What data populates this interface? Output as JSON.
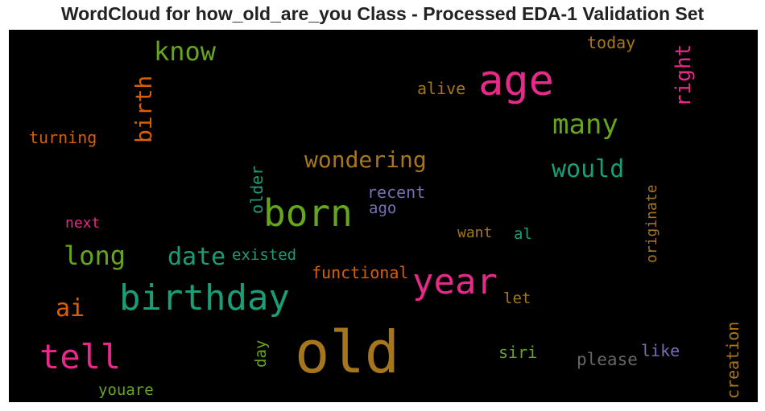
{
  "chart_data": {
    "type": "wordcloud",
    "title": "WordCloud for how_old_are_you Class - Processed EDA-1 Validation Set",
    "background": "#000000",
    "colormap": "Dark2",
    "words": [
      {
        "text": "old",
        "color": "#a6761d",
        "vertical": false
      },
      {
        "text": "age",
        "color": "#e7298a",
        "vertical": false
      },
      {
        "text": "born",
        "color": "#66a61e",
        "vertical": false
      },
      {
        "text": "birthday",
        "color": "#1b9e77",
        "vertical": false
      },
      {
        "text": "year",
        "color": "#e7298a",
        "vertical": false
      },
      {
        "text": "tell",
        "color": "#e7298a",
        "vertical": false
      },
      {
        "text": "many",
        "color": "#66a61e",
        "vertical": false
      },
      {
        "text": "would",
        "color": "#1b9e77",
        "vertical": false
      },
      {
        "text": "know",
        "color": "#66a61e",
        "vertical": false
      },
      {
        "text": "long",
        "color": "#66a61e",
        "vertical": false
      },
      {
        "text": "date",
        "color": "#1b9e77",
        "vertical": false
      },
      {
        "text": "ai",
        "color": "#d95f02",
        "vertical": false
      },
      {
        "text": "wondering",
        "color": "#a6761d",
        "vertical": false
      },
      {
        "text": "birth",
        "color": "#d95f02",
        "vertical": true
      },
      {
        "text": "right",
        "color": "#e7298a",
        "vertical": true
      },
      {
        "text": "today",
        "color": "#a6761d",
        "vertical": false
      },
      {
        "text": "alive",
        "color": "#a6761d",
        "vertical": false
      },
      {
        "text": "turning",
        "color": "#d95f02",
        "vertical": false
      },
      {
        "text": "recent",
        "color": "#7570b3",
        "vertical": false
      },
      {
        "text": "ago",
        "color": "#7570b3",
        "vertical": false
      },
      {
        "text": "older",
        "color": "#1b9e77",
        "vertical": true
      },
      {
        "text": "next",
        "color": "#e7298a",
        "vertical": false
      },
      {
        "text": "existed",
        "color": "#1b9e77",
        "vertical": false
      },
      {
        "text": "want",
        "color": "#a6761d",
        "vertical": false
      },
      {
        "text": "al",
        "color": "#1b9e77",
        "vertical": false
      },
      {
        "text": "originate",
        "color": "#a6761d",
        "vertical": true
      },
      {
        "text": "functional",
        "color": "#d95f02",
        "vertical": false
      },
      {
        "text": "let",
        "color": "#a6761d",
        "vertical": false
      },
      {
        "text": "siri",
        "color": "#66a61e",
        "vertical": false
      },
      {
        "text": "please",
        "color": "#666666",
        "vertical": false
      },
      {
        "text": "like",
        "color": "#7570b3",
        "vertical": false
      },
      {
        "text": "day",
        "color": "#66a61e",
        "vertical": true
      },
      {
        "text": "creation",
        "color": "#a6761d",
        "vertical": true
      },
      {
        "text": "youare",
        "color": "#66a61e",
        "vertical": false
      }
    ]
  }
}
